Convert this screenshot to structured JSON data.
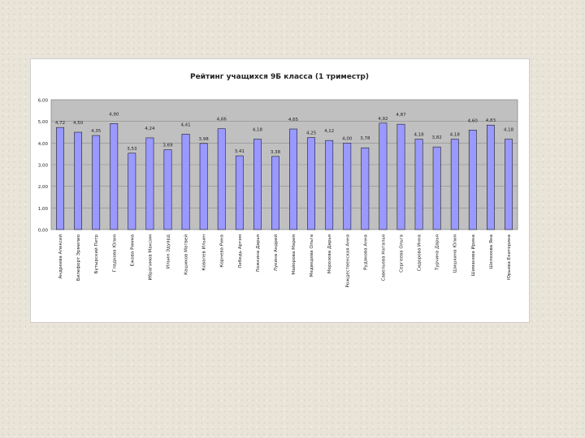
{
  "chart_data": {
    "type": "bar",
    "title": "Рейтинг учащихся 9Б класса (1 триместр)",
    "ylim": [
      0,
      6
    ],
    "yticks": [
      "0,00",
      "1,00",
      "2,00",
      "3,00",
      "4,00",
      "5,00",
      "6,00"
    ],
    "grid": true,
    "plot_bg": "#c0c0c0",
    "bar_color": "#9999ff",
    "bar_outline": "#000000",
    "categories": [
      "Андреева Алексей",
      "Билефорт Эрмилио",
      "Бутырский Петр",
      "Гладкова Юлия",
      "Ежова Римма",
      "Ибрагимов Максим",
      "Ильин Эдуард",
      "Кашиков Матвей",
      "Ковалев Ильин",
      "Корнева Рина",
      "Лебедь Артем",
      "Ложкина Дарья",
      "Лукина Андрей",
      "Майорова Мария",
      "Медведева Ольга",
      "Морозова Дарья",
      "Рождественская Анна",
      "Рудакова Анна",
      "Савельева Наталья",
      "Сергеева Ольга",
      "Сидорова Инна",
      "Турчина Дарья",
      "Шишкина Юлия",
      "Шиманова Ирина",
      "Шелехова Яна",
      "Юрьева Екатерина"
    ],
    "values": [
      4.72,
      4.5,
      4.35,
      4.9,
      3.53,
      4.24,
      3.69,
      4.41,
      3.98,
      4.66,
      3.41,
      4.18,
      3.38,
      4.65,
      4.25,
      4.12,
      4.0,
      3.78,
      4.92,
      4.87,
      4.18,
      3.82,
      4.18,
      4.6,
      4.83,
      4.18
    ],
    "value_labels": [
      "4,72",
      "4,50",
      "4,35",
      "4,90",
      "3,53",
      "4,24",
      "3,69",
      "4,41",
      "3,98",
      "4,66",
      "3,41",
      "4,18",
      "3,38",
      "4,65",
      "4,25",
      "4,12",
      "4,00",
      "3,78",
      "4,92",
      "4,87",
      "4,18",
      "3,82",
      "4,18",
      "4,60",
      "4,83",
      "4,18"
    ]
  }
}
